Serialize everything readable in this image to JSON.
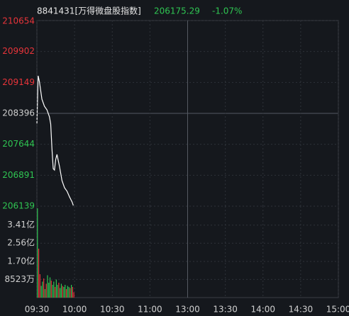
{
  "header": {
    "name": "8841431[万得微盘股指数]",
    "price": "206175.29",
    "change": "-1.07%"
  },
  "chart_data": [
    {
      "type": "line",
      "x": [
        0,
        1,
        2,
        4,
        6,
        8,
        10,
        11,
        12,
        13,
        14,
        15,
        16,
        18,
        20,
        22,
        24,
        26,
        28,
        29
      ],
      "series": [
        {
          "color": "#ffffff",
          "values": [
            208138,
            209310,
            209172,
            208741,
            208569,
            208483,
            208311,
            208138,
            207535,
            207053,
            207018,
            207277,
            207398,
            207105,
            206760,
            206588,
            206502,
            206364,
            206243,
            206157
          ]
        }
      ],
      "xlim": [
        0,
        240
      ],
      "ylim": [
        206139,
        210654
      ],
      "yticks": [
        210654,
        209902,
        209149,
        208396,
        207644,
        206891,
        206139
      ],
      "up_color": "#e8343a",
      "down_color": "#2fc552",
      "flat_color": "#d0d0d0"
    },
    {
      "type": "bar",
      "x": [
        0,
        1,
        2,
        3,
        4,
        5,
        6,
        7,
        8,
        9,
        10,
        11,
        12,
        13,
        14,
        15,
        16,
        17,
        18,
        19,
        20,
        21,
        22,
        23,
        24,
        25,
        26,
        27,
        28,
        29
      ],
      "values": [
        4.2,
        2.3,
        1.1,
        0.55,
        0.75,
        0.9,
        0.4,
        0.65,
        1.05,
        0.7,
        0.95,
        0.8,
        0.6,
        0.75,
        0.5,
        0.85,
        0.6,
        0.7,
        0.45,
        0.65,
        0.55,
        0.5,
        0.6,
        0.4,
        0.55,
        0.5,
        0.45,
        0.6,
        0.5,
        0.25
      ],
      "colors": [
        "#2fc552",
        "#e8343a",
        "#e8343a",
        "#2fc552",
        "#2fc552",
        "#e8343a",
        "#2fc552",
        "#e8343a",
        "#2fc552",
        "#2fc552",
        "#2fc552",
        "#e8343a",
        "#2fc552",
        "#2fc552",
        "#e8343a",
        "#2fc552",
        "#2fc552",
        "#e8343a",
        "#2fc552",
        "#2fc552",
        "#e8343a",
        "#2fc552",
        "#2fc552",
        "#e8343a",
        "#2fc552",
        "#2fc552",
        "#e8343a",
        "#2fc552",
        "#e8343a",
        "#e8343a"
      ],
      "xlim": [
        0,
        240
      ],
      "ylim": [
        0,
        4.3
      ],
      "yticks": [
        {
          "value": 3.41,
          "label": "3.41亿"
        },
        {
          "value": 2.56,
          "label": "2.56亿"
        },
        {
          "value": 1.7,
          "label": "1.70亿"
        },
        {
          "value": 0.8523,
          "label": "8523万"
        }
      ],
      "xticks": [
        {
          "value": 0,
          "label": "09:30"
        },
        {
          "value": 30,
          "label": "10:00"
        },
        {
          "value": 60,
          "label": "10:30"
        },
        {
          "value": 90,
          "label": "11:00"
        },
        {
          "value": 120,
          "label": "13:00"
        },
        {
          "value": 150,
          "label": "13:30"
        },
        {
          "value": 180,
          "label": "14:00"
        },
        {
          "value": 210,
          "label": "14:30"
        },
        {
          "value": 240,
          "label": "15:00"
        }
      ]
    }
  ]
}
